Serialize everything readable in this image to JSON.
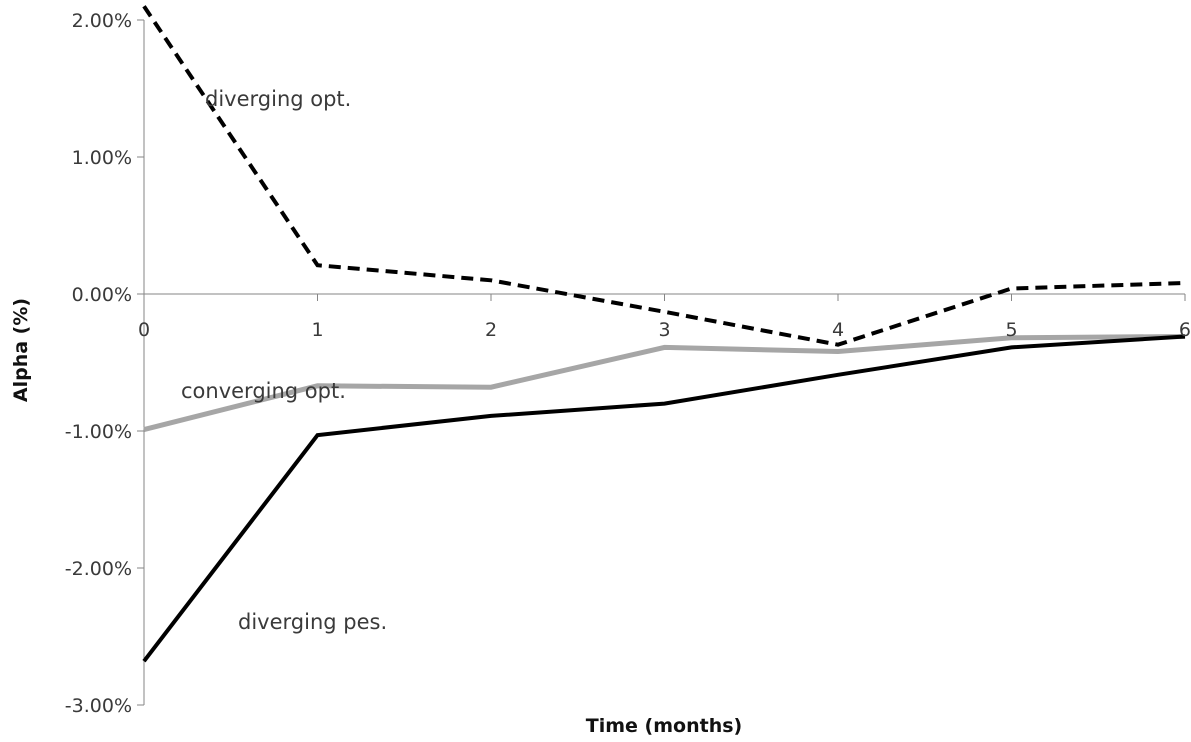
{
  "chart_data": {
    "type": "line",
    "title": "",
    "xlabel": "Time (months)",
    "ylabel": "Alpha (%)",
    "x": [
      0,
      1,
      2,
      3,
      4,
      5,
      6
    ],
    "x_tick_labels": [
      "0",
      "1",
      "2",
      "3",
      "4",
      "5",
      "6"
    ],
    "y_tick_labels": [
      "2.00%",
      "1.00%",
      "0.00%",
      "-1.00%",
      "-2.00%",
      "-3.00%"
    ],
    "y_ticks": [
      2,
      1,
      0,
      -1,
      -2,
      -3
    ],
    "ylim": [
      -3,
      2
    ],
    "xlim": [
      0,
      6
    ],
    "grid": false,
    "legend": "none",
    "series": [
      {
        "name": "diverging opt.",
        "values": [
          2.1,
          0.21,
          0.1,
          -0.13,
          -0.37,
          0.04,
          0.08
        ],
        "color": "#000000",
        "style": "dashed"
      },
      {
        "name": "converging opt.",
        "values": [
          -0.99,
          -0.67,
          -0.68,
          -0.39,
          -0.42,
          -0.32,
          -0.31
        ],
        "color": "#a6a6a6",
        "style": "solid"
      },
      {
        "name": "diverging pes.",
        "values": [
          -2.68,
          -1.03,
          -0.89,
          -0.8,
          -0.59,
          -0.39,
          -0.31
        ],
        "color": "#000000",
        "style": "solid"
      }
    ]
  }
}
